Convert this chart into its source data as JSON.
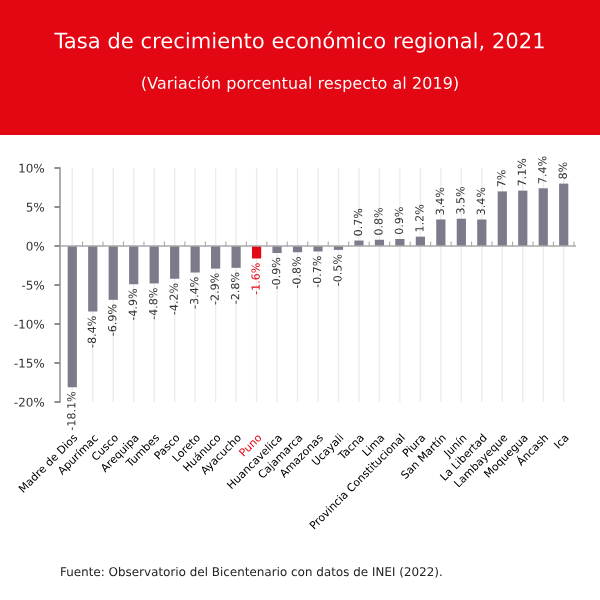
{
  "chart_data": {
    "type": "bar",
    "title": "Tasa de crecimiento económico regional, 2021",
    "subtitle": "(Variación porcentual respecto al 2019)",
    "categories": [
      "Madre de Dios",
      "Apurímac",
      "Cusco",
      "Arequipa",
      "Tumbes",
      "Pasco",
      "Loreto",
      "Huánuco",
      "Ayacucho",
      "Puno",
      "Huancavelica",
      "Cajamarca",
      "Amazonas",
      "Ucayali",
      "Tacna",
      "Lima",
      "Provincia Constitucional",
      "Piura",
      "San Martín",
      "Junín",
      "La Libertad",
      "Lambayeque",
      "Moquegua",
      "Áncash",
      "Ica"
    ],
    "values": [
      -18.1,
      -8.4,
      -6.9,
      -4.9,
      -4.8,
      -4.2,
      -3.4,
      -2.9,
      -2.8,
      -1.6,
      -0.9,
      -0.8,
      -0.7,
      -0.5,
      0.7,
      0.8,
      0.9,
      1.2,
      3.4,
      3.5,
      3.4,
      7.0,
      7.1,
      7.4,
      8.0
    ],
    "value_labels": [
      "-18.1%",
      "-8.4%",
      "-6.9%",
      "-4.9%",
      "-4.8%",
      "-4.2%",
      "-3.4%",
      "-2.9%",
      "-2.8%",
      "-1.6%",
      "-0.9%",
      "-0.8%",
      "-0.7%",
      "-0.5%",
      "0.7%",
      "0.8%",
      "0.9%",
      "1.2%",
      "3.4%",
      "3.5%",
      "3.4%",
      "7%",
      "7.1%",
      "7.4%",
      "8%"
    ],
    "colors": [
      "#7b7b8b",
      "#7b7b8b",
      "#7b7b8b",
      "#7b7b8b",
      "#7b7b8b",
      "#7b7b8b",
      "#7b7b8b",
      "#7b7b8b",
      "#7b7b8b",
      "#e30613",
      "#7b7b8b",
      "#7b7b8b",
      "#7b7b8b",
      "#7b7b8b",
      "#7b7b8b",
      "#7b7b8b",
      "#7b7b8b",
      "#7b7b8b",
      "#7b7b8b",
      "#7b7b8b",
      "#7b7b8b",
      "#7b7b8b",
      "#7b7b8b",
      "#7b7b8b",
      "#7b7b8b"
    ],
    "ylim": [
      -20,
      10
    ],
    "yticks": [
      {
        "value": -20,
        "label": "-20%"
      },
      {
        "value": -15,
        "label": "-15%"
      },
      {
        "value": -10,
        "label": "-10%"
      },
      {
        "value": -5,
        "label": "-5%"
      },
      {
        "value": 0,
        "label": "0%"
      },
      {
        "value": 5,
        "label": "5%"
      },
      {
        "value": 10,
        "label": "10%"
      }
    ],
    "grid": "x",
    "legend": false,
    "annotations": [
      "Fuente: Observatorio del Bicentenario con datos de INEI (2022)."
    ]
  }
}
